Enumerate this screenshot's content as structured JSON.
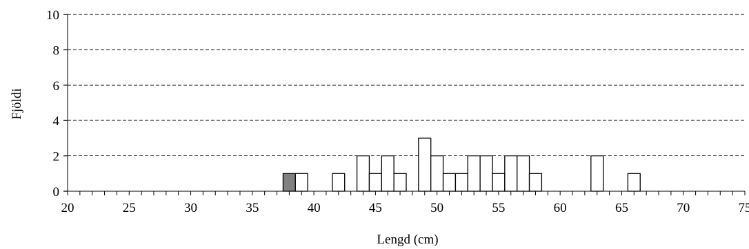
{
  "chart_data": {
    "type": "bar",
    "xlabel": "Lengd (cm)",
    "ylabel": "Fjöldi",
    "xlim": [
      20,
      75
    ],
    "ylim": [
      0,
      10
    ],
    "x_ticks": [
      20,
      25,
      30,
      35,
      40,
      45,
      50,
      55,
      60,
      65,
      70,
      75
    ],
    "y_ticks": [
      0,
      2,
      4,
      6,
      8,
      10
    ],
    "grid": "horizontal dashed",
    "bins": [
      {
        "x": 38,
        "value": 1,
        "highlight": true
      },
      {
        "x": 39,
        "value": 1
      },
      {
        "x": 42,
        "value": 1
      },
      {
        "x": 44,
        "value": 2
      },
      {
        "x": 45,
        "value": 1
      },
      {
        "x": 46,
        "value": 2
      },
      {
        "x": 47,
        "value": 1
      },
      {
        "x": 49,
        "value": 3
      },
      {
        "x": 50,
        "value": 2
      },
      {
        "x": 51,
        "value": 1
      },
      {
        "x": 52,
        "value": 1
      },
      {
        "x": 53,
        "value": 2
      },
      {
        "x": 54,
        "value": 2
      },
      {
        "x": 55,
        "value": 1
      },
      {
        "x": 56,
        "value": 2
      },
      {
        "x": 57,
        "value": 2
      },
      {
        "x": 58,
        "value": 1
      },
      {
        "x": 63,
        "value": 2
      },
      {
        "x": 66,
        "value": 1
      }
    ],
    "colors": {
      "bar_fill": "#ffffff",
      "highlight_fill": "#808080",
      "stroke": "#000000"
    }
  }
}
